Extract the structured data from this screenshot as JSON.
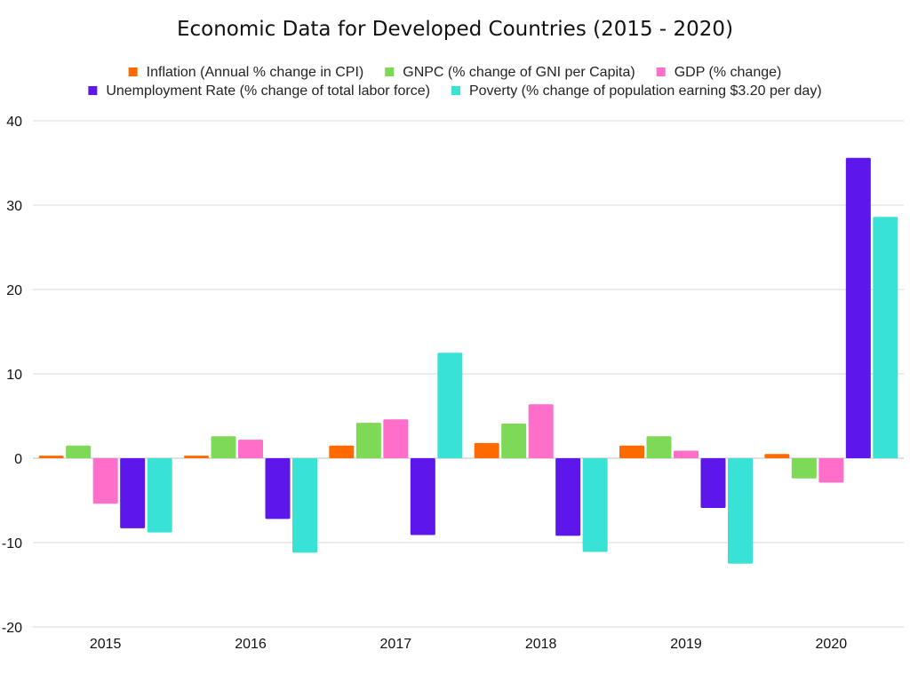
{
  "chart_data": {
    "type": "bar",
    "title": "Economic Data for Developed Countries (2015 - 2020)",
    "xlabel": "",
    "ylabel": "",
    "categories": [
      "2015",
      "2016",
      "2017",
      "2018",
      "2019",
      "2020"
    ],
    "ylim": [
      -20,
      40
    ],
    "yticks": [
      40,
      30,
      20,
      10,
      0,
      -10,
      -20
    ],
    "grid": true,
    "legend_position": "top",
    "series": [
      {
        "name": "Inflation (Annual % change in CPI)",
        "color": "#ff6a00",
        "values": [
          0.3,
          0.3,
          1.5,
          1.8,
          1.5,
          0.5
        ]
      },
      {
        "name": "GNPC (% change of GNI per Capita)",
        "color": "#7ed957",
        "values": [
          1.5,
          2.6,
          4.2,
          4.1,
          2.6,
          -2.4
        ]
      },
      {
        "name": "GDP (% change)",
        "color": "#ff6fc9",
        "values": [
          -5.4,
          2.2,
          4.6,
          6.4,
          0.9,
          -2.9
        ]
      },
      {
        "name": "Unemployment Rate (% change of total labor force)",
        "color": "#5e17eb",
        "values": [
          -8.3,
          -7.2,
          -9.1,
          -9.2,
          -5.9,
          35.6
        ]
      },
      {
        "name": "Poverty (% change of population earning $3.20 per day)",
        "color": "#38e3d6",
        "values": [
          -8.8,
          -11.2,
          12.5,
          -11.1,
          -12.5,
          28.6
        ]
      }
    ]
  }
}
